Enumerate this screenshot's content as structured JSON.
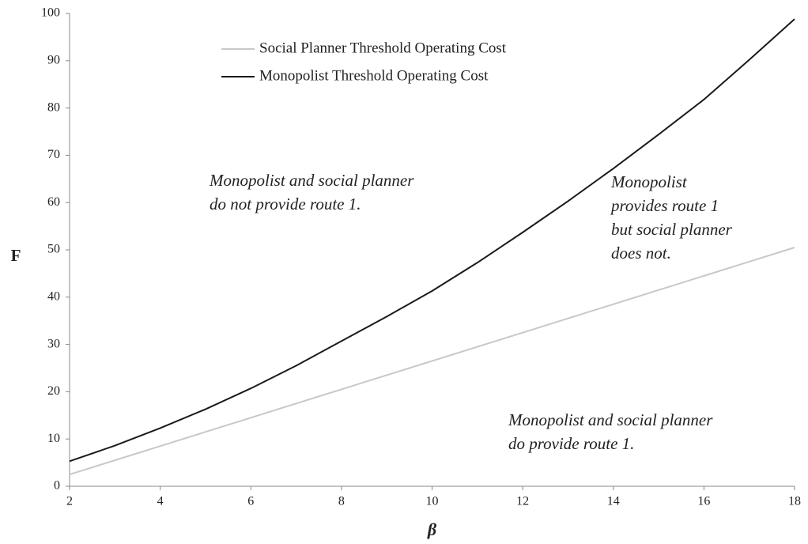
{
  "chart_data": {
    "type": "line",
    "x_label": "β",
    "y_label": "F",
    "x": [
      2,
      3,
      4,
      5,
      6,
      7,
      8,
      9,
      10,
      11,
      12,
      13,
      14,
      15,
      16,
      17,
      18
    ],
    "series": [
      {
        "name": "Social Planner Threshold Operating Cost",
        "color": "#c8c8c8",
        "values": [
          2.5,
          5.5,
          8.5,
          11.5,
          14.5,
          17.5,
          20.5,
          23.5,
          26.5,
          29.5,
          32.5,
          35.5,
          38.5,
          41.5,
          44.5,
          47.5,
          50.5
        ]
      },
      {
        "name": "Monopolist Threshold Operating Cost",
        "color": "#1a1a1a",
        "values": [
          5.3,
          8.6,
          12.3,
          16.3,
          20.7,
          25.5,
          30.7,
          35.9,
          41.3,
          47.3,
          53.7,
          60.3,
          67.2,
          74.4,
          81.8,
          90.2,
          98.8
        ]
      }
    ],
    "xlim": [
      2,
      18
    ],
    "ylim": [
      0,
      100
    ],
    "xticks": [
      2,
      4,
      6,
      8,
      10,
      12,
      14,
      16,
      18
    ],
    "yticks": [
      0,
      10,
      20,
      30,
      40,
      50,
      60,
      70,
      80,
      90,
      100
    ],
    "grid": false,
    "legend": "upper left",
    "annotations": [
      [
        "Monopolist and social planner",
        "do not provide route 1."
      ],
      [
        "Monopolist",
        "provides route 1",
        "but social planner",
        "does not."
      ],
      [
        "Monopolist and social planner",
        "do provide route 1."
      ]
    ]
  }
}
